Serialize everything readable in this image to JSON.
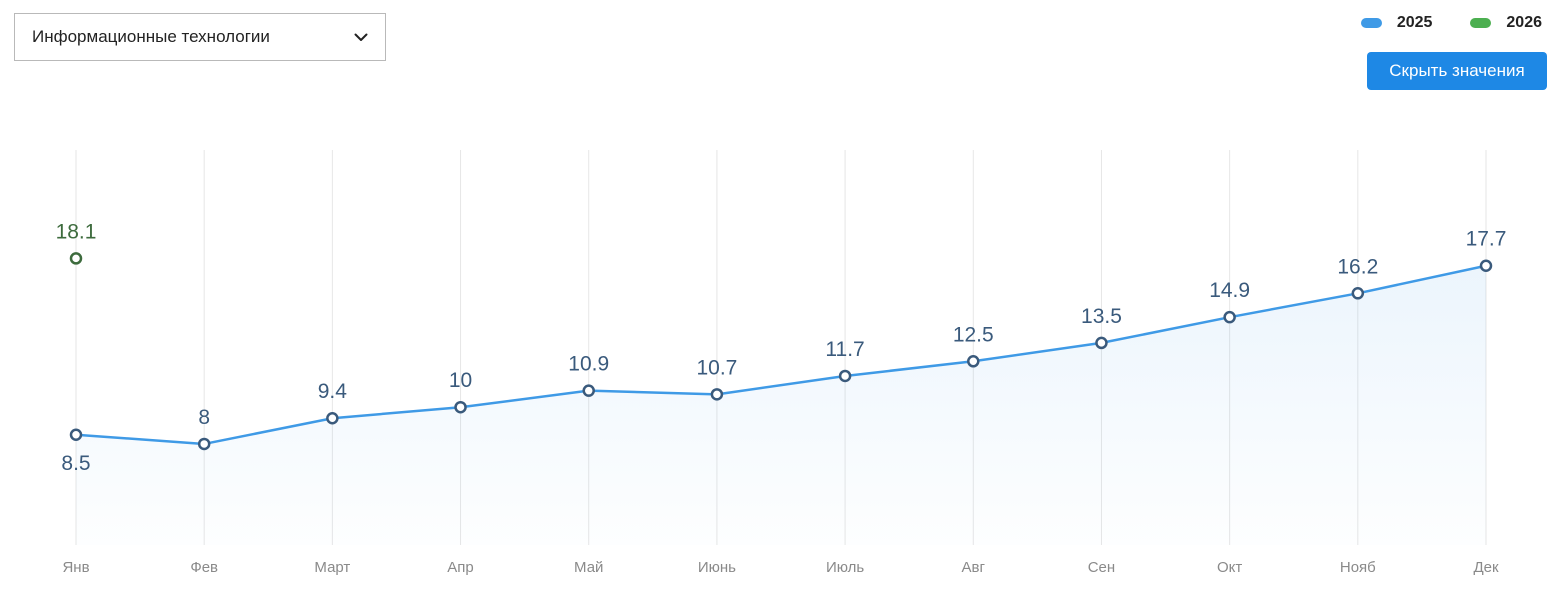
{
  "filter": {
    "selected": "Информационные технологии"
  },
  "legend": [
    {
      "label": "2025",
      "color": "#3f9ae6"
    },
    {
      "label": "2026",
      "color": "#4caf50"
    }
  ],
  "toolbar": {
    "hide_values_label": "Скрыть значения"
  },
  "colors": {
    "line_2025": "#3f9ae6",
    "marker_2025": "#3a5a7c",
    "label_2025": "#3a5a7c",
    "marker_2026": "#3d6b3d",
    "label_2026": "#3d6b3d",
    "grid": "#e6e6e6"
  },
  "chart_data": {
    "type": "line",
    "categories": [
      "Янв",
      "Фев",
      "Март",
      "Апр",
      "Май",
      "Июнь",
      "Июль",
      "Авг",
      "Сен",
      "Окт",
      "Нояб",
      "Дек"
    ],
    "series": [
      {
        "name": "2025",
        "values": [
          8.5,
          8,
          9.4,
          10,
          10.9,
          10.7,
          11.7,
          12.5,
          13.5,
          14.9,
          16.2,
          17.7
        ]
      },
      {
        "name": "2026",
        "values": [
          18.1,
          null,
          null,
          null,
          null,
          null,
          null,
          null,
          null,
          null,
          null,
          null
        ]
      }
    ],
    "ylim": [
      2.5,
      24
    ],
    "grid": "vertical",
    "legend_position": "top-right",
    "area_fill": true
  }
}
